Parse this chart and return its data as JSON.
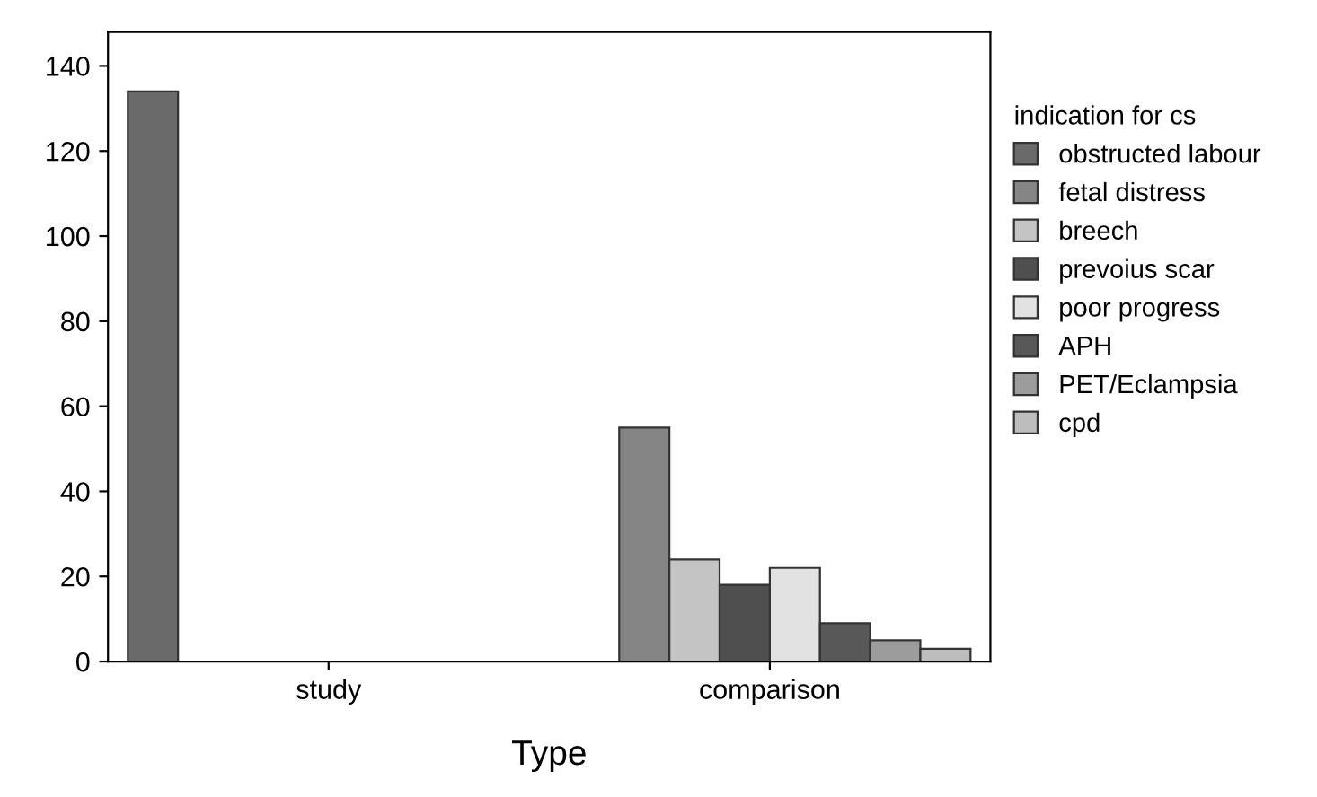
{
  "chart_data": {
    "type": "bar",
    "xlabel": "Type",
    "legend_title": "indication for cs",
    "categories": [
      "study",
      "comparison"
    ],
    "series": [
      {
        "name": "obstructed labour",
        "color": "#6a6a6a",
        "values": [
          134,
          null
        ]
      },
      {
        "name": "fetal distress",
        "color": "#858585",
        "values": [
          null,
          55
        ]
      },
      {
        "name": "breech",
        "color": "#c4c4c4",
        "values": [
          null,
          24
        ]
      },
      {
        "name": "prevoius scar",
        "color": "#4f4f4f",
        "values": [
          null,
          18
        ]
      },
      {
        "name": "poor progress",
        "color": "#e2e2e2",
        "values": [
          null,
          22
        ]
      },
      {
        "name": "APH",
        "color": "#585858",
        "values": [
          null,
          9
        ]
      },
      {
        "name": "PET/Eclampsia",
        "color": "#9c9c9c",
        "values": [
          null,
          5
        ]
      },
      {
        "name": "cpd",
        "color": "#bdbdbd",
        "values": [
          null,
          3
        ]
      }
    ],
    "ylim": [
      0,
      148
    ],
    "yticks": [
      0,
      20,
      40,
      60,
      80,
      100,
      120,
      140
    ],
    "grid": false,
    "legend": "right"
  }
}
